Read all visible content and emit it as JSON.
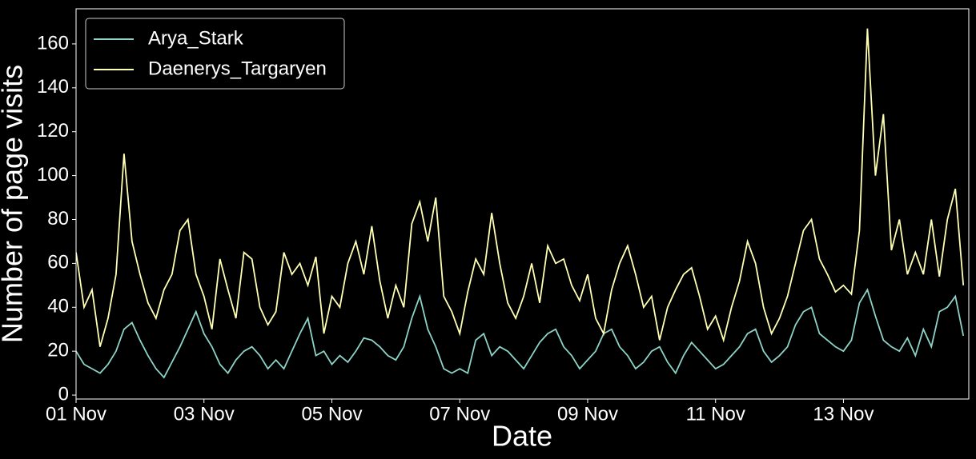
{
  "chart_data": {
    "type": "line",
    "xlabel": "Date",
    "ylabel": "Number of page visits",
    "x": [
      0,
      0.125,
      0.25,
      0.375,
      0.5,
      0.625,
      0.75,
      0.875,
      1,
      1.125,
      1.25,
      1.375,
      1.5,
      1.625,
      1.75,
      1.875,
      2,
      2.125,
      2.25,
      2.375,
      2.5,
      2.625,
      2.75,
      2.875,
      3,
      3.125,
      3.25,
      3.375,
      3.5,
      3.625,
      3.75,
      3.875,
      4,
      4.125,
      4.25,
      4.375,
      4.5,
      4.625,
      4.75,
      4.875,
      5,
      5.125,
      5.25,
      5.375,
      5.5,
      5.625,
      5.75,
      5.875,
      6,
      6.125,
      6.25,
      6.375,
      6.5,
      6.625,
      6.75,
      6.875,
      7,
      7.125,
      7.25,
      7.375,
      7.5,
      7.625,
      7.75,
      7.875,
      8,
      8.125,
      8.25,
      8.375,
      8.5,
      8.625,
      8.75,
      8.875,
      9,
      9.125,
      9.25,
      9.375,
      9.5,
      9.625,
      9.75,
      9.875,
      10,
      10.125,
      10.25,
      10.375,
      10.5,
      10.625,
      10.75,
      10.875,
      11,
      11.125,
      11.25,
      11.375,
      11.5,
      11.625,
      11.75,
      11.875,
      12,
      12.125,
      12.25,
      12.375,
      12.5,
      12.625,
      12.75,
      12.875,
      13,
      13.125,
      13.25,
      13.375,
      13.5,
      13.625,
      13.75,
      13.875
    ],
    "series": [
      {
        "name": "Arya_Stark",
        "color": "#8dd3c7",
        "values": [
          20,
          14,
          12,
          10,
          14,
          20,
          30,
          33,
          25,
          18,
          12,
          8,
          15,
          22,
          30,
          38,
          28,
          22,
          14,
          10,
          16,
          20,
          22,
          18,
          12,
          16,
          12,
          20,
          28,
          35,
          18,
          20,
          14,
          18,
          15,
          20,
          26,
          25,
          22,
          18,
          16,
          22,
          35,
          45,
          30,
          22,
          12,
          10,
          12,
          10,
          25,
          28,
          18,
          22,
          20,
          16,
          12,
          18,
          24,
          28,
          30,
          22,
          18,
          12,
          16,
          20,
          28,
          30,
          22,
          18,
          12,
          15,
          20,
          22,
          15,
          10,
          18,
          24,
          20,
          16,
          12,
          14,
          18,
          22,
          28,
          30,
          20,
          15,
          18,
          22,
          32,
          38,
          40,
          28,
          25,
          22,
          20,
          25,
          42,
          48,
          36,
          25,
          22,
          20,
          26,
          18,
          30,
          22,
          38,
          40,
          45,
          27
        ]
      },
      {
        "name": "Daenerys_Targaryen",
        "color": "#ffffb3",
        "values": [
          65,
          40,
          48,
          22,
          35,
          55,
          110,
          70,
          55,
          42,
          35,
          48,
          55,
          75,
          80,
          55,
          45,
          30,
          62,
          48,
          35,
          65,
          62,
          40,
          32,
          38,
          65,
          55,
          60,
          50,
          63,
          28,
          45,
          40,
          60,
          70,
          55,
          77,
          52,
          35,
          50,
          40,
          78,
          88,
          70,
          90,
          45,
          38,
          28,
          47,
          62,
          55,
          83,
          60,
          42,
          35,
          45,
          60,
          42,
          68,
          60,
          62,
          50,
          43,
          55,
          35,
          28,
          48,
          60,
          68,
          55,
          40,
          45,
          25,
          40,
          48,
          55,
          58,
          45,
          30,
          36,
          25,
          40,
          52,
          70,
          60,
          40,
          28,
          35,
          45,
          60,
          75,
          80,
          62,
          55,
          47,
          50,
          46,
          75,
          167,
          100,
          128,
          66,
          80,
          55,
          65,
          55,
          80,
          54,
          80,
          94,
          50
        ]
      }
    ],
    "xlim": [
      0,
      13.96
    ],
    "xticks": [
      {
        "value": 0,
        "label": "01 Nov"
      },
      {
        "value": 2,
        "label": "03 Nov"
      },
      {
        "value": 4,
        "label": "05 Nov"
      },
      {
        "value": 6,
        "label": "07 Nov"
      },
      {
        "value": 8,
        "label": "09 Nov"
      },
      {
        "value": 10,
        "label": "11 Nov"
      },
      {
        "value": 12,
        "label": "13 Nov"
      }
    ],
    "ylim": [
      -1.8,
      176
    ],
    "yticks": [
      0,
      20,
      40,
      60,
      80,
      100,
      120,
      140,
      160
    ],
    "legend": "upper left"
  }
}
